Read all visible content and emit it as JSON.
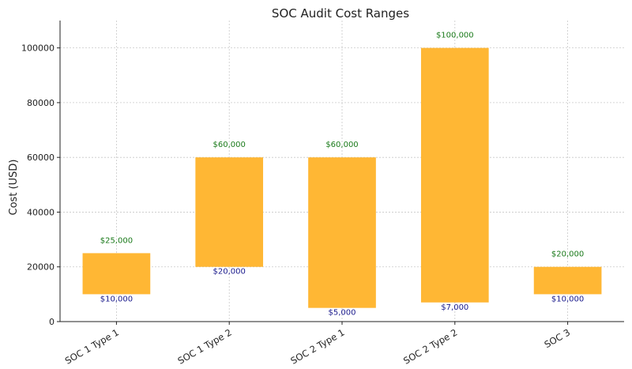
{
  "chart_data": {
    "type": "bar",
    "subtype": "floating-range",
    "title": "SOC Audit Cost Ranges",
    "xlabel": "",
    "ylabel": "Cost (USD)",
    "ylim": [
      0,
      110000
    ],
    "yticks": [
      0,
      20000,
      40000,
      60000,
      80000,
      100000
    ],
    "ytick_labels": [
      "0",
      "20000",
      "40000",
      "60000",
      "80000",
      "100000"
    ],
    "grid": true,
    "categories": [
      "SOC 1 Type 1",
      "SOC 1 Type 2",
      "SOC 2 Type 1",
      "SOC 2 Type 2",
      "SOC 3"
    ],
    "min_values": [
      10000,
      20000,
      5000,
      7000,
      10000
    ],
    "max_values": [
      25000,
      60000,
      60000,
      100000,
      20000
    ],
    "min_labels": [
      "$10,000",
      "$20,000",
      "$5,000",
      "$7,000",
      "$10,000"
    ],
    "max_labels": [
      "$25,000",
      "$60,000",
      "$60,000",
      "$100,000",
      "$20,000"
    ],
    "colors": {
      "bar": "#FFB734",
      "min_label": "#1a1a8c",
      "max_label": "#1a7a1a"
    }
  }
}
